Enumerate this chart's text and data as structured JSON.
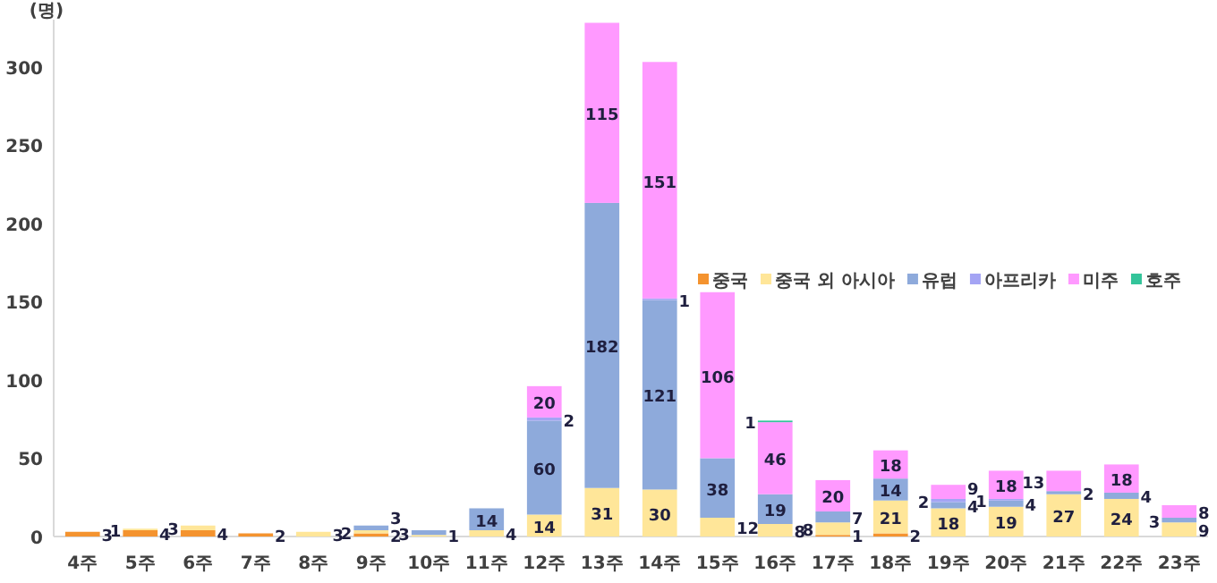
{
  "chart_data": {
    "type": "bar",
    "stacked": true,
    "ylabel": "(명)",
    "categories": [
      "4주",
      "5주",
      "6주",
      "7주",
      "8주",
      "9주",
      "10주",
      "11주",
      "12주",
      "13주",
      "14주",
      "15주",
      "16주",
      "17주",
      "18주",
      "19주",
      "20주",
      "21주",
      "22주",
      "23주"
    ],
    "series": [
      {
        "name": "중국",
        "color": "#f4932f",
        "values": [
          3,
          4,
          4,
          2,
          null,
          2,
          null,
          null,
          null,
          null,
          null,
          null,
          null,
          1,
          2,
          null,
          null,
          null,
          null,
          null
        ]
      },
      {
        "name": "중국 외 아시아",
        "color": "#ffe699",
        "values": [
          null,
          1,
          3,
          null,
          3,
          2,
          1,
          4,
          14,
          31,
          30,
          12,
          8,
          8,
          21,
          18,
          19,
          27,
          24,
          9
        ]
      },
      {
        "name": "유럽",
        "color": "#8eaadb",
        "values": [
          null,
          null,
          null,
          null,
          null,
          3,
          3,
          14,
          60,
          182,
          121,
          38,
          19,
          7,
          14,
          4,
          4,
          2,
          4,
          3
        ]
      },
      {
        "name": "아프리카",
        "color": "#a4a4f4",
        "values": [
          null,
          null,
          null,
          null,
          null,
          null,
          null,
          null,
          2,
          null,
          1,
          null,
          null,
          null,
          null,
          2,
          1,
          null,
          null,
          null
        ]
      },
      {
        "name": "미주",
        "color": "#ff99ff",
        "values": [
          null,
          null,
          null,
          null,
          null,
          null,
          null,
          null,
          20,
          115,
          151,
          106,
          46,
          20,
          18,
          9,
          18,
          13,
          18,
          8
        ]
      },
      {
        "name": "호주",
        "color": "#33c49a",
        "values": [
          null,
          null,
          null,
          null,
          null,
          null,
          null,
          null,
          null,
          null,
          null,
          null,
          1,
          null,
          null,
          null,
          null,
          null,
          null,
          null
        ]
      }
    ],
    "ylim": [
      0,
      330
    ],
    "yticks": [
      0,
      50,
      100,
      150,
      200,
      250,
      300
    ],
    "data_labels": true,
    "legend": "right"
  }
}
